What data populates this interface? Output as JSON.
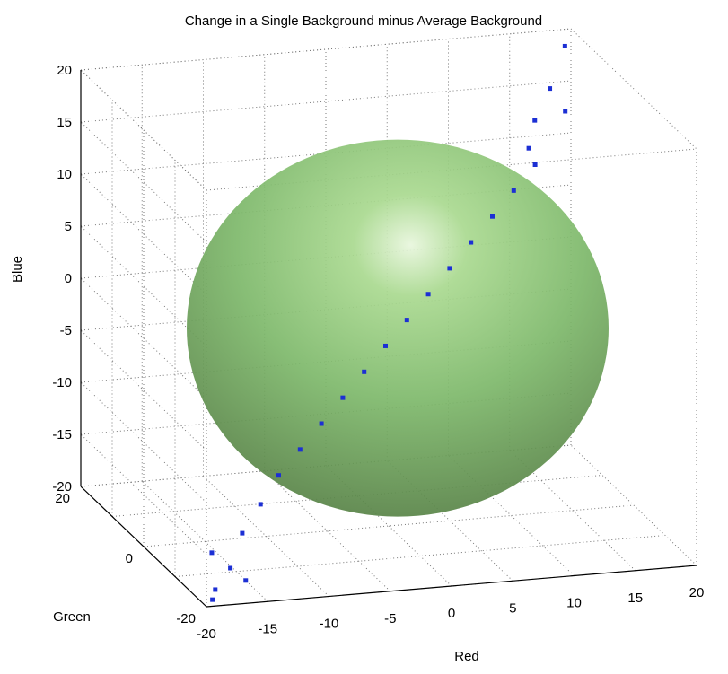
{
  "chart_data": {
    "type": "scatter",
    "title": "Change in a Single Background minus Average Background",
    "xlabel": "Red",
    "ylabel": "Green",
    "zlabel": "Blue",
    "x_ticks": [
      "-20",
      "-15",
      "-10",
      "-5",
      "0",
      "5",
      "10",
      "15",
      "20"
    ],
    "y_ticks": [
      "-20",
      "0",
      "20"
    ],
    "z_ticks": [
      "-20",
      "-15",
      "-10",
      "-5",
      "0",
      "5",
      "10",
      "15",
      "20"
    ],
    "xlim": [
      -20,
      20
    ],
    "ylim": [
      -20,
      20
    ],
    "zlim": [
      -20,
      20
    ],
    "grid": true,
    "projection": "3d",
    "series": [
      {
        "kind": "points",
        "color": "#1c2fd4",
        "points": [
          [
            19,
            18,
            19
          ],
          [
            17,
            15,
            16
          ],
          [
            18,
            14,
            14
          ],
          [
            15,
            12,
            14
          ],
          [
            14,
            10,
            12
          ],
          [
            14,
            8,
            11
          ],
          [
            12,
            7,
            9
          ],
          [
            10,
            6,
            7
          ],
          [
            8,
            5,
            5
          ],
          [
            6,
            4,
            3
          ],
          [
            4,
            3,
            1
          ],
          [
            2,
            2,
            -1
          ],
          [
            0,
            1,
            -3
          ],
          [
            -2,
            0,
            -5
          ],
          [
            -4,
            -1,
            -7
          ],
          [
            -6,
            -2,
            -9
          ],
          [
            -8,
            -3,
            -11
          ],
          [
            -10,
            -4,
            -13
          ],
          [
            -12,
            -6,
            -15
          ],
          [
            -14,
            -8,
            -17
          ],
          [
            -16,
            -12,
            -19
          ],
          [
            -18,
            -15,
            -20
          ],
          [
            -19,
            -18,
            -20
          ],
          [
            -17,
            -10,
            -18
          ],
          [
            -15,
            -13,
            -20
          ]
        ]
      },
      {
        "kind": "ellipsoid",
        "color": "#6aa84f",
        "center": [
          0,
          0,
          -1
        ],
        "radii": [
          17,
          17,
          16
        ]
      }
    ]
  }
}
